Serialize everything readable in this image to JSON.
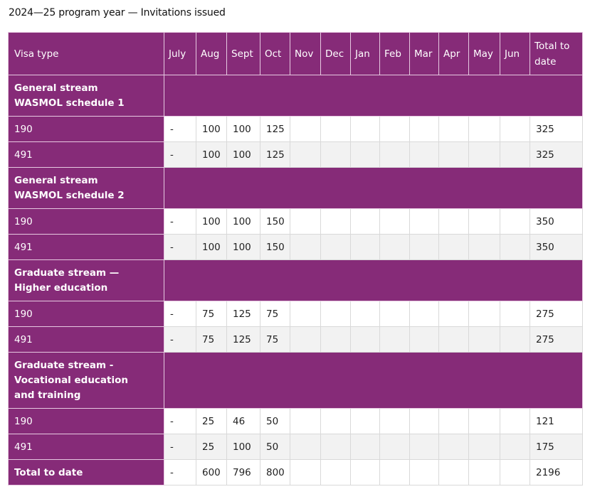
{
  "caption": "2024—25 program year — Invitations issued",
  "headers": {
    "visa_type": "Visa type",
    "months": [
      "July",
      "Aug",
      "Sept",
      "Oct",
      "Nov",
      "Dec",
      "Jan",
      "Feb",
      "Mar",
      "Apr",
      "May",
      "Jun"
    ],
    "total": "Total to date"
  },
  "groups": [
    {
      "title": "General stream WASMOL schedule 1",
      "rows": [
        {
          "visa": "190",
          "values": [
            "-",
            "100",
            "100",
            "125",
            "",
            "",
            "",
            "",
            "",
            "",
            "",
            ""
          ],
          "total": "325"
        },
        {
          "visa": "491",
          "values": [
            "-",
            "100",
            "100",
            "125",
            "",
            "",
            "",
            "",
            "",
            "",
            "",
            ""
          ],
          "total": "325"
        }
      ]
    },
    {
      "title": "General stream WASMOL schedule 2",
      "rows": [
        {
          "visa": "190",
          "values": [
            "-",
            "100",
            "100",
            "150",
            "",
            "",
            "",
            "",
            "",
            "",
            "",
            ""
          ],
          "total": "350"
        },
        {
          "visa": "491",
          "values": [
            "-",
            "100",
            "100",
            "150",
            "",
            "",
            "",
            "",
            "",
            "",
            "",
            ""
          ],
          "total": "350"
        }
      ]
    },
    {
      "title": "Graduate stream — Higher education",
      "rows": [
        {
          "visa": "190",
          "values": [
            "-",
            "75",
            "125",
            "75",
            "",
            "",
            "",
            "",
            "",
            "",
            "",
            ""
          ],
          "total": "275"
        },
        {
          "visa": "491",
          "values": [
            "-",
            "75",
            "125",
            "75",
            "",
            "",
            "",
            "",
            "",
            "",
            "",
            ""
          ],
          "total": "275"
        }
      ]
    },
    {
      "title": "Graduate stream - Vocational education and training",
      "rows": [
        {
          "visa": "190",
          "values": [
            "-",
            "25",
            "46",
            "50",
            "",
            "",
            "",
            "",
            "",
            "",
            "",
            ""
          ],
          "total": "121"
        },
        {
          "visa": "491",
          "values": [
            "-",
            "25",
            "100",
            "50",
            "",
            "",
            "",
            "",
            "",
            "",
            "",
            ""
          ],
          "total": "175"
        }
      ]
    }
  ],
  "total_row": {
    "label": "Total to date",
    "values": [
      "-",
      "600",
      "796",
      "800",
      "",
      "",
      "",
      "",
      "",
      "",
      "",
      ""
    ],
    "total": "2196"
  },
  "colors": {
    "header_purple": "#862b78",
    "alt_row": "#f2f2f2"
  }
}
